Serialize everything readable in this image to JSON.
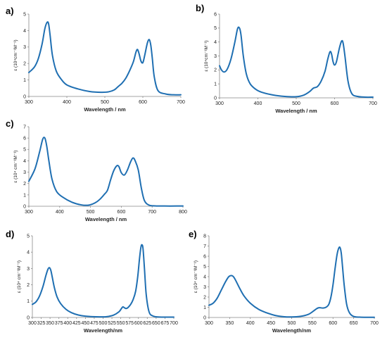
{
  "chart_data": [
    {
      "panel": "a)",
      "type": "line",
      "xlabel": "Wavelength / nm",
      "ylabel": "ε (10⁴cm⁻¹M⁻¹)",
      "xlim": [
        300,
        700
      ],
      "ylim": [
        0,
        5
      ],
      "xticks": [
        300,
        400,
        500,
        600,
        700
      ],
      "yticks": [
        0,
        1,
        2,
        3,
        4,
        5
      ],
      "x": [
        300,
        315,
        325,
        335,
        342,
        348,
        352,
        356,
        362,
        372,
        385,
        400,
        430,
        460,
        490,
        510,
        525,
        535,
        545,
        555,
        565,
        575,
        582,
        586,
        590,
        595,
        600,
        605,
        612,
        617,
        621,
        625,
        630,
        640,
        660,
        680,
        700
      ],
      "y": [
        1.45,
        1.8,
        2.3,
        3.2,
        4.1,
        4.5,
        4.4,
        3.7,
        2.5,
        1.55,
        1.05,
        0.7,
        0.45,
        0.3,
        0.25,
        0.28,
        0.4,
        0.6,
        0.8,
        1.1,
        1.55,
        2.1,
        2.7,
        2.85,
        2.6,
        2.15,
        2.05,
        2.5,
        3.25,
        3.45,
        3.1,
        2.3,
        1.2,
        0.35,
        0.15,
        0.1,
        0.1
      ]
    },
    {
      "panel": "b)",
      "type": "line",
      "xlabel": "Wavelength / nm",
      "ylabel": "ε (10⁴cm⁻¹M⁻¹)",
      "xlim": [
        300,
        700
      ],
      "ylim": [
        0,
        6
      ],
      "xticks": [
        300,
        400,
        500,
        600,
        700
      ],
      "yticks": [
        0,
        1,
        2,
        3,
        4,
        5,
        6
      ],
      "x": [
        300,
        305,
        312,
        320,
        330,
        340,
        347,
        352,
        356,
        362,
        370,
        380,
        395,
        410,
        440,
        470,
        500,
        520,
        535,
        545,
        555,
        565,
        575,
        582,
        588,
        592,
        596,
        600,
        605,
        612,
        618,
        622,
        627,
        635,
        645,
        660,
        680,
        700
      ],
      "y": [
        2.3,
        2.0,
        1.85,
        2.05,
        2.8,
        4.0,
        4.95,
        5.0,
        4.5,
        3.0,
        1.7,
        1.0,
        0.6,
        0.4,
        0.2,
        0.1,
        0.08,
        0.2,
        0.45,
        0.7,
        0.8,
        1.2,
        1.9,
        2.75,
        3.3,
        3.15,
        2.6,
        2.35,
        2.6,
        3.5,
        4.05,
        3.95,
        3.0,
        1.2,
        0.3,
        0.1,
        0.05,
        0.05
      ]
    },
    {
      "panel": "c)",
      "type": "line",
      "xlabel": "Wavelength / nm",
      "ylabel": "ε (10⁴ cm⁻¹M⁻¹)",
      "xlim": [
        300,
        800
      ],
      "ylim": [
        0,
        7
      ],
      "xticks": [
        300,
        400,
        500,
        600,
        700,
        800
      ],
      "yticks": [
        0,
        1,
        2,
        3,
        4,
        5,
        6,
        7
      ],
      "x": [
        300,
        320,
        335,
        345,
        352,
        358,
        365,
        375,
        390,
        410,
        440,
        470,
        495,
        515,
        530,
        545,
        555,
        565,
        575,
        585,
        592,
        600,
        610,
        620,
        630,
        638,
        645,
        655,
        665,
        675,
        690,
        710,
        740,
        780,
        800
      ],
      "y": [
        2.2,
        3.3,
        4.8,
        5.9,
        6.0,
        5.3,
        4.0,
        2.4,
        1.3,
        0.8,
        0.35,
        0.12,
        0.1,
        0.3,
        0.6,
        1.05,
        1.4,
        2.3,
        3.1,
        3.55,
        3.5,
        2.95,
        2.75,
        3.2,
        3.9,
        4.25,
        4.0,
        3.2,
        1.6,
        0.5,
        0.1,
        0.03,
        0.02,
        0.02,
        0.02
      ]
    },
    {
      "panel": "d)",
      "type": "line",
      "xlabel": "Wavelength/nm",
      "ylabel": "ε (10⁴ cm⁻¹M⁻¹)",
      "xlim": [
        300,
        700
      ],
      "ylim": [
        0,
        5
      ],
      "xticks": [
        300,
        325,
        350,
        375,
        400,
        425,
        450,
        475,
        500,
        525,
        550,
        575,
        600,
        625,
        650,
        675,
        700
      ],
      "yticks": [
        0,
        1,
        2,
        3,
        4,
        5
      ],
      "x": [
        300,
        310,
        320,
        330,
        338,
        344,
        348,
        352,
        356,
        362,
        370,
        380,
        395,
        410,
        430,
        450,
        470,
        490,
        510,
        530,
        545,
        552,
        556,
        560,
        565,
        570,
        578,
        585,
        592,
        598,
        603,
        607,
        610,
        613,
        617,
        622,
        630,
        640,
        655,
        670,
        700
      ],
      "y": [
        0.8,
        0.95,
        1.3,
        1.9,
        2.55,
        2.95,
        3.05,
        2.9,
        2.5,
        1.85,
        1.25,
        0.85,
        0.5,
        0.3,
        0.15,
        0.08,
        0.05,
        0.04,
        0.05,
        0.15,
        0.35,
        0.55,
        0.65,
        0.6,
        0.55,
        0.6,
        0.8,
        1.1,
        1.6,
        2.5,
        3.6,
        4.3,
        4.45,
        4.2,
        3.0,
        1.4,
        0.35,
        0.1,
        0.03,
        0.02,
        0.02
      ]
    },
    {
      "panel": "e)",
      "type": "line",
      "xlabel": "Wavelength/nm",
      "ylabel": "ε (10⁴ cm⁻¹M⁻¹)",
      "xlim": [
        300,
        700
      ],
      "ylim": [
        0,
        8
      ],
      "xticks": [
        300,
        350,
        400,
        450,
        500,
        550,
        600,
        650,
        700
      ],
      "yticks": [
        0,
        1,
        2,
        3,
        4,
        5,
        6,
        7,
        8
      ],
      "x": [
        300,
        310,
        320,
        330,
        340,
        348,
        355,
        360,
        365,
        375,
        385,
        400,
        420,
        440,
        460,
        480,
        500,
        520,
        540,
        550,
        560,
        565,
        570,
        575,
        580,
        585,
        590,
        595,
        600,
        605,
        610,
        614,
        617,
        620,
        623,
        627,
        633,
        640,
        650,
        665,
        680,
        700
      ],
      "y": [
        1.2,
        1.4,
        1.9,
        2.7,
        3.5,
        4.0,
        4.1,
        3.95,
        3.6,
        2.8,
        2.1,
        1.4,
        0.8,
        0.45,
        0.2,
        0.08,
        0.05,
        0.1,
        0.3,
        0.55,
        0.85,
        0.95,
        0.95,
        0.92,
        0.95,
        1.05,
        1.3,
        2.0,
        3.2,
        4.8,
        6.2,
        6.8,
        6.85,
        6.3,
        5.0,
        3.2,
        1.3,
        0.45,
        0.1,
        0.03,
        0.02,
        0.02
      ]
    }
  ]
}
